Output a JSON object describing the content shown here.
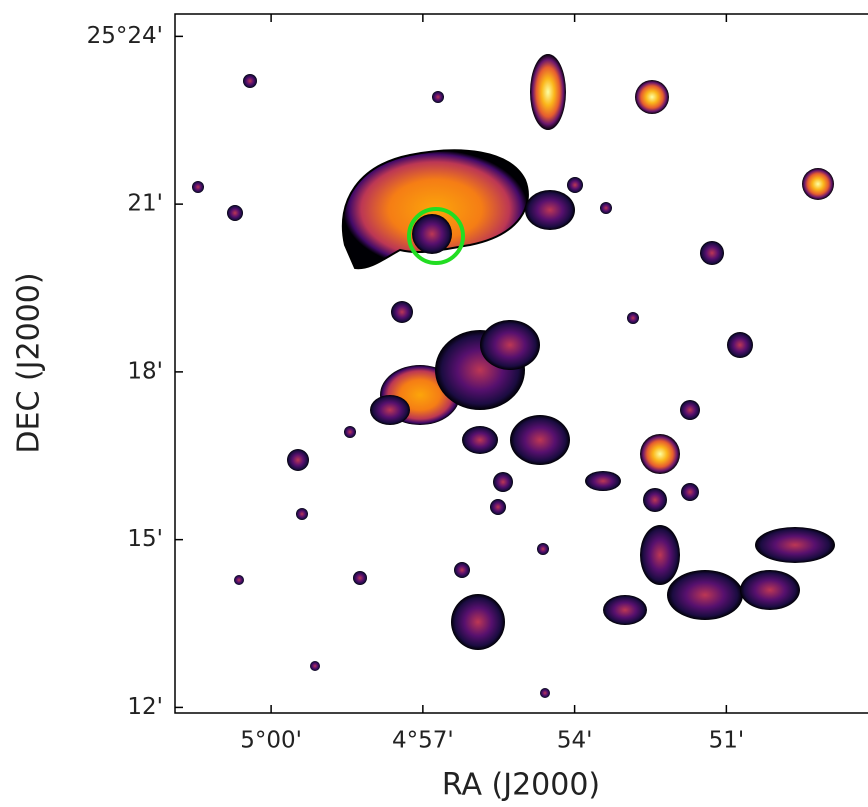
{
  "chart_data": {
    "type": "image",
    "x_label": "RA (J2000)",
    "y_label": "DEC (J2000)",
    "xlim": [
      301.9,
      288.2
    ],
    "xticks": [
      {
        "value": 300,
        "label": "5°00'"
      },
      {
        "value": 297,
        "label": "4°57'"
      },
      {
        "value": 294,
        "label": "54'"
      },
      {
        "value": 291,
        "label": "51'"
      }
    ],
    "ylim": [
      11.9,
      24.4
    ],
    "yticks": [
      {
        "value": 24,
        "label": "25°24'"
      },
      {
        "value": 21,
        "label": "21'"
      },
      {
        "value": 18,
        "label": "18'"
      },
      {
        "value": 15,
        "label": "15'"
      },
      {
        "value": 12,
        "label": "12'"
      }
    ]
  }
}
